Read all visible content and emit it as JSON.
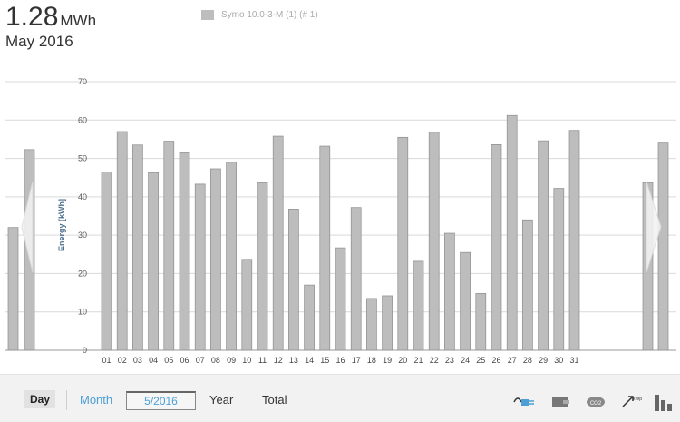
{
  "header": {
    "total_value": "1.28",
    "total_unit": "MWh",
    "period": "May 2016",
    "legend_label": "Symo 10.0-3-M (1) (# 1)"
  },
  "toolbar": {
    "day_label": "Day",
    "month_label": "Month",
    "date_value": "5/2016",
    "year_label": "Year",
    "total_label": "Total",
    "icons": [
      "plug-icon",
      "wallet-icon",
      "co2-icon",
      "kwp-icon",
      "bar-chart-icon"
    ]
  },
  "chart_data": {
    "type": "bar",
    "ylabel": "Energy [kWh]",
    "ylim": [
      0,
      70
    ],
    "yticks": [
      0,
      10,
      20,
      30,
      40,
      50,
      60,
      70
    ],
    "grid": true,
    "bar_color": "#bdbdbd",
    "categories": [
      "01",
      "02",
      "03",
      "04",
      "05",
      "06",
      "07",
      "08",
      "09",
      "10",
      "11",
      "12",
      "13",
      "14",
      "15",
      "16",
      "17",
      "18",
      "19",
      "20",
      "21",
      "22",
      "23",
      "24",
      "25",
      "26",
      "27",
      "28",
      "29",
      "30",
      "31"
    ],
    "values": [
      46.5,
      57.0,
      53.5,
      46.3,
      54.5,
      51.5,
      43.3,
      47.3,
      49.0,
      23.7,
      43.7,
      55.8,
      36.8,
      17.0,
      53.2,
      26.7,
      37.2,
      13.5,
      14.2,
      55.5,
      23.2,
      56.8,
      30.5,
      25.5,
      14.8,
      53.6,
      61.2,
      34.0,
      54.6,
      42.2,
      57.3
    ],
    "prev_month_tail": [
      32.0,
      52.3
    ],
    "next_month_head": [
      43.7,
      54.0
    ]
  }
}
